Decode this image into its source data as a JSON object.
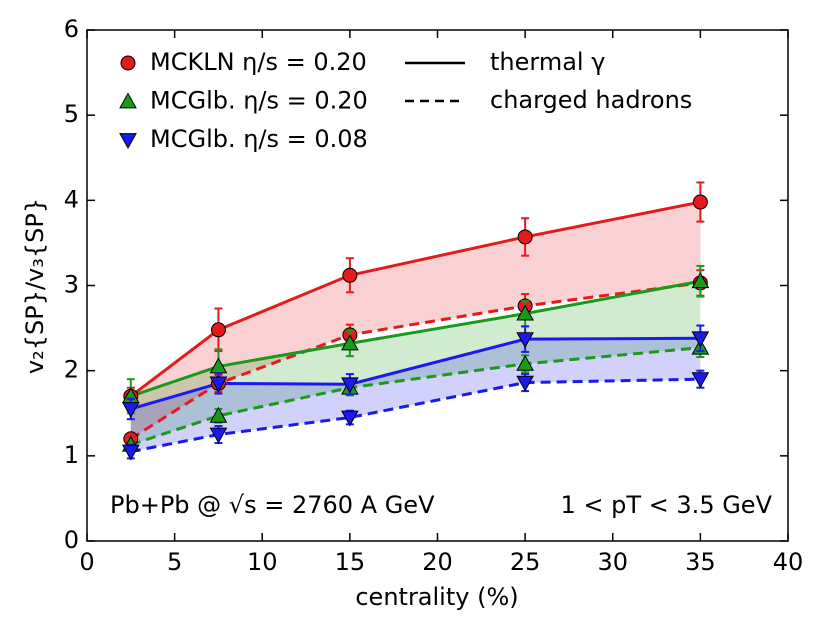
{
  "chart_data": {
    "type": "line",
    "x_label": "centrality (%)",
    "y_label": "v₂{SP}/v₃{SP}",
    "x": [
      2.5,
      7.5,
      15,
      25,
      35
    ],
    "xlim": [
      0,
      40
    ],
    "xticks": [
      0,
      5,
      10,
      15,
      20,
      25,
      30,
      35,
      40
    ],
    "ylim": [
      0,
      6
    ],
    "yticks": [
      0,
      1,
      2,
      3,
      4,
      5,
      6
    ],
    "line_styles": {
      "thermal": "thermal γ",
      "hadrons": "charged hadrons"
    },
    "models": [
      {
        "name": "MCKLN η/s = 0.20",
        "color": "#e41a1c",
        "marker": "circle",
        "thermal": {
          "values": [
            1.7,
            2.48,
            3.12,
            3.57,
            3.98
          ],
          "errors": [
            0.1,
            0.25,
            0.2,
            0.22,
            0.23
          ]
        },
        "hadrons": {
          "values": [
            1.2,
            1.85,
            2.42,
            2.76,
            3.03
          ],
          "errors": [
            0.06,
            0.1,
            0.12,
            0.14,
            0.15
          ]
        }
      },
      {
        "name": "MCGlb. η/s = 0.20",
        "color": "#1a9a1a",
        "marker": "triangle-up",
        "thermal": {
          "values": [
            1.7,
            2.05,
            2.32,
            2.67,
            3.05
          ],
          "errors": [
            0.2,
            0.2,
            0.15,
            0.15,
            0.18
          ]
        },
        "hadrons": {
          "values": [
            1.13,
            1.47,
            1.8,
            2.08,
            2.27
          ],
          "errors": [
            0.06,
            0.08,
            0.09,
            0.1,
            0.11
          ]
        }
      },
      {
        "name": "MCGlb. η/s = 0.08",
        "color": "#1a1aee",
        "marker": "triangle-down",
        "thermal": {
          "values": [
            1.55,
            1.85,
            1.84,
            2.37,
            2.38
          ],
          "errors": [
            0.12,
            0.12,
            0.12,
            0.15,
            0.15
          ]
        },
        "hadrons": {
          "values": [
            1.05,
            1.25,
            1.45,
            1.86,
            1.9
          ],
          "errors": [
            0.08,
            0.1,
            0.08,
            0.1,
            0.1
          ]
        }
      }
    ],
    "annotations": [
      "Pb+Pb @ √s = 2760 A GeV",
      "1 < pT < 3.5 GeV"
    ]
  }
}
